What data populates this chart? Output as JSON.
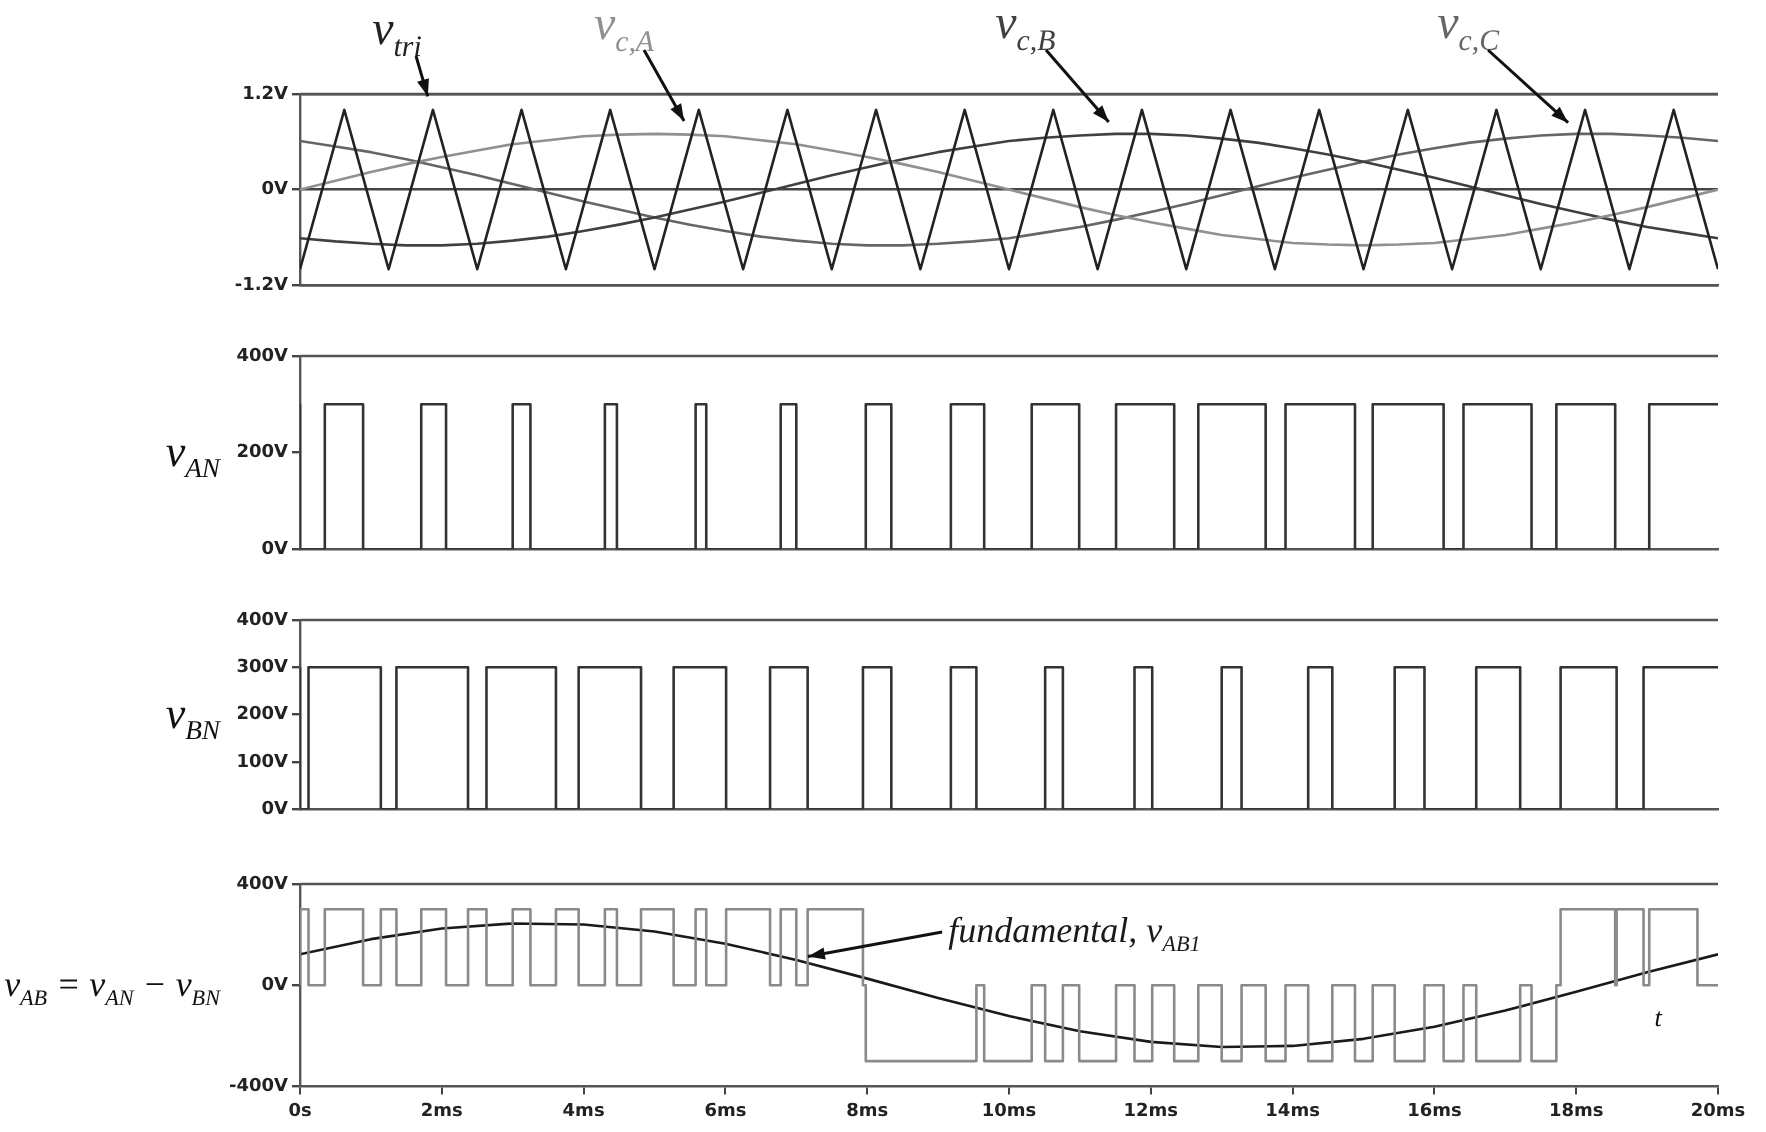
{
  "chart_data": [
    {
      "type": "line",
      "xlim": [
        0,
        20
      ],
      "ylim": [
        -1.2,
        1.2
      ],
      "yticks": [
        {
          "value": -1.2,
          "label": "-1.2V"
        },
        {
          "value": 0,
          "label": "0V"
        },
        {
          "value": 1.2,
          "label": "1.2V"
        }
      ],
      "tick_labels": "y",
      "grid": "y",
      "marker": "none",
      "x": [
        0,
        0.5,
        1,
        1.5,
        2,
        2.5,
        3,
        3.5,
        4,
        4.5,
        5,
        5.5,
        6,
        6.5,
        7,
        7.5,
        8,
        8.5,
        9,
        9.5,
        10,
        10.5,
        11,
        11.5,
        12,
        12.5,
        13,
        13.5,
        14,
        14.5,
        15,
        15.5,
        16,
        16.5,
        17,
        17.5,
        18,
        18.5,
        19,
        19.5,
        20
      ],
      "series": [
        {
          "name": "v$_{tri}$",
          "color": "#222222",
          "x": [
            0,
            0.625,
            1.25,
            1.875,
            2.5,
            3.125,
            3.75,
            4.375,
            5,
            5.625,
            6.25,
            6.875,
            7.5,
            8.125,
            8.75,
            9.375,
            10,
            10.625,
            11.25,
            11.875,
            12.5,
            13.125,
            13.75,
            14.375,
            15,
            15.625,
            16.25,
            16.875,
            17.5,
            18.125,
            18.75,
            19.375,
            20
          ],
          "values": [
            -1,
            1,
            -1,
            1,
            -1,
            1,
            -1,
            1,
            -1,
            1,
            -1,
            1,
            -1,
            1,
            -1,
            1,
            -1,
            1,
            -1,
            1,
            -1,
            1,
            -1,
            1,
            -1,
            1,
            -1,
            1,
            -1,
            1,
            -1,
            1,
            -1
          ]
        },
        {
          "name": "v$_{c,A}$",
          "color": "#909090",
          "values": [
            0,
            0.11,
            0.22,
            0.32,
            0.41,
            0.49,
            0.57,
            0.62,
            0.67,
            0.69,
            0.7,
            0.69,
            0.67,
            0.62,
            0.57,
            0.49,
            0.41,
            0.32,
            0.22,
            0.11,
            0,
            -0.11,
            -0.22,
            -0.32,
            -0.41,
            -0.49,
            -0.57,
            -0.62,
            -0.67,
            -0.69,
            -0.7,
            -0.69,
            -0.67,
            -0.62,
            -0.57,
            -0.49,
            -0.41,
            -0.32,
            -0.22,
            -0.11,
            0
          ]
        },
        {
          "name": "v$_{c,B}$",
          "color": "#404040",
          "values": [
            -0.61,
            -0.65,
            -0.68,
            -0.7,
            -0.7,
            -0.68,
            -0.64,
            -0.59,
            -0.52,
            -0.44,
            -0.35,
            -0.25,
            -0.15,
            -0.04,
            0.07,
            0.18,
            0.28,
            0.38,
            0.47,
            0.54,
            0.61,
            0.65,
            0.68,
            0.7,
            0.7,
            0.68,
            0.64,
            0.59,
            0.52,
            0.44,
            0.35,
            0.25,
            0.15,
            0.04,
            -0.07,
            -0.18,
            -0.28,
            -0.38,
            -0.47,
            -0.54,
            -0.61
          ]
        },
        {
          "name": "v$_{c,C}$",
          "color": "#666666",
          "values": [
            0.61,
            0.54,
            0.47,
            0.38,
            0.28,
            0.18,
            0.07,
            -0.04,
            -0.15,
            -0.25,
            -0.35,
            -0.44,
            -0.52,
            -0.59,
            -0.64,
            -0.68,
            -0.7,
            -0.7,
            -0.68,
            -0.65,
            -0.61,
            -0.54,
            -0.47,
            -0.38,
            -0.28,
            -0.18,
            -0.07,
            0.04,
            0.15,
            0.25,
            0.35,
            0.44,
            0.52,
            0.59,
            0.64,
            0.68,
            0.7,
            0.7,
            0.68,
            0.65,
            0.61
          ]
        }
      ]
    },
    {
      "type": "step",
      "ylabel": "v$_{AN}$",
      "xlim": [
        0,
        20
      ],
      "ylim": [
        0,
        400
      ],
      "yticks": [
        {
          "value": 0,
          "label": "0V"
        },
        {
          "value": 200,
          "label": "200V"
        },
        {
          "value": 400,
          "label": "400V"
        }
      ],
      "tick_labels": "y",
      "grid": false,
      "marker": "none",
      "series": [
        {
          "color": "#333333",
          "x": [
            0,
            0.35,
            0.89,
            1.71,
            2.06,
            3.0,
            3.25,
            4.3,
            4.47,
            5.58,
            5.73,
            6.78,
            7.0,
            7.98,
            8.34,
            9.18,
            9.65,
            10.32,
            10.99,
            11.51,
            12.33,
            12.67,
            13.62,
            13.9,
            14.88,
            15.13,
            16.13,
            16.41,
            17.37,
            17.72,
            18.55,
            19.03,
            19.71,
            20
          ],
          "values": [
            300,
            0,
            300,
            0,
            300,
            0,
            300,
            0,
            300,
            0,
            300,
            0,
            300,
            0,
            300,
            0,
            300,
            0,
            300,
            0,
            300,
            0,
            300,
            0,
            300,
            0,
            300,
            0,
            300,
            0,
            300,
            0,
            300,
            300
          ]
        }
      ]
    },
    {
      "type": "step",
      "ylabel": "v$_{BN}$",
      "xlim": [
        0,
        20
      ],
      "ylim": [
        0,
        400
      ],
      "yticks": [
        {
          "value": 0,
          "label": "0V"
        },
        {
          "value": 100,
          "label": "100V"
        },
        {
          "value": 200,
          "label": "200V"
        },
        {
          "value": 300,
          "label": "300V"
        },
        {
          "value": 400,
          "label": "400V"
        }
      ],
      "tick_labels": "y",
      "grid": false,
      "marker": "none",
      "series": [
        {
          "color": "#333333",
          "x": [
            0,
            0.12,
            1.14,
            1.36,
            2.37,
            2.63,
            3.61,
            3.93,
            4.81,
            5.27,
            6.01,
            6.63,
            7.16,
            7.94,
            8.34,
            9.18,
            9.54,
            10.51,
            10.76,
            11.77,
            12.02,
            13.0,
            13.28,
            14.22,
            14.56,
            15.44,
            15.86,
            16.59,
            17.21,
            17.78,
            18.57,
            18.95,
            19.91,
            20
          ],
          "values": [
            300,
            0,
            300,
            0,
            300,
            0,
            300,
            0,
            300,
            0,
            300,
            0,
            300,
            0,
            300,
            0,
            300,
            0,
            300,
            0,
            300,
            0,
            300,
            0,
            300,
            0,
            300,
            0,
            300,
            0,
            300,
            0,
            300,
            300
          ]
        }
      ]
    },
    {
      "type": "step",
      "ylabel": "v$_{AB}$ = v$_{AN}$ − v$_{BN}$",
      "xlabel": "t",
      "xlim": [
        0,
        20
      ],
      "ylim": [
        -400,
        400
      ],
      "yticks": [
        {
          "value": -400,
          "label": "-400V"
        },
        {
          "value": 0,
          "label": "0V"
        },
        {
          "value": 400,
          "label": "400V"
        }
      ],
      "xticks": [
        {
          "value": 0,
          "label": "0s"
        },
        {
          "value": 2,
          "label": "2ms"
        },
        {
          "value": 4,
          "label": "4ms"
        },
        {
          "value": 6,
          "label": "6ms"
        },
        {
          "value": 8,
          "label": "8ms"
        },
        {
          "value": 10,
          "label": "10ms"
        },
        {
          "value": 12,
          "label": "12ms"
        },
        {
          "value": 14,
          "label": "14ms"
        },
        {
          "value": 16,
          "label": "16ms"
        },
        {
          "value": 18,
          "label": "18ms"
        },
        {
          "value": 20,
          "label": "20ms"
        }
      ],
      "grid": false,
      "marker": "none",
      "series": [
        {
          "color": "#8a8a8a",
          "x": [
            0,
            0.12,
            0.35,
            0.89,
            1.14,
            1.36,
            1.71,
            2.06,
            2.37,
            2.63,
            3.0,
            3.25,
            3.61,
            3.93,
            4.3,
            4.47,
            4.81,
            5.27,
            5.58,
            5.73,
            6.01,
            6.63,
            6.78,
            7.0,
            7.16,
            7.94,
            7.98,
            9.54,
            9.65,
            10.32,
            10.51,
            10.76,
            10.99,
            11.51,
            11.77,
            12.02,
            12.33,
            12.67,
            13.0,
            13.28,
            13.62,
            13.9,
            14.22,
            14.56,
            14.88,
            15.13,
            15.44,
            15.86,
            16.13,
            16.41,
            16.59,
            17.21,
            17.37,
            17.72,
            17.78,
            18.55,
            18.57,
            18.95,
            19.03,
            19.71,
            19.91,
            20
          ],
          "values": [
            0,
            300,
            0,
            300,
            0,
            300,
            0,
            300,
            0,
            300,
            0,
            300,
            0,
            300,
            0,
            300,
            0,
            300,
            0,
            300,
            0,
            300,
            0,
            300,
            0,
            300,
            0,
            -300,
            0,
            -300,
            0,
            -300,
            0,
            -300,
            0,
            -300,
            0,
            -300,
            0,
            -300,
            0,
            -300,
            0,
            -300,
            0,
            -300,
            0,
            -300,
            0,
            -300,
            0,
            -300,
            0,
            -300,
            0,
            300,
            0,
            300,
            0,
            300,
            0,
            0
          ]
        },
        {
          "type": "line",
          "name": "fundamental, v$_{AB1}$",
          "color": "#1a1a1a",
          "x": [
            0,
            1,
            2,
            3,
            4,
            5,
            6,
            7,
            8,
            9,
            10,
            11,
            12,
            13,
            14,
            15,
            16,
            17,
            18,
            19,
            20
          ],
          "values": [
            122,
            182,
            224,
            244,
            240,
            212,
            164,
            100,
            26,
            -51,
            -122,
            -182,
            -224,
            -244,
            -240,
            -212,
            -164,
            -100,
            -26,
            51,
            122
          ]
        }
      ]
    }
  ]
}
